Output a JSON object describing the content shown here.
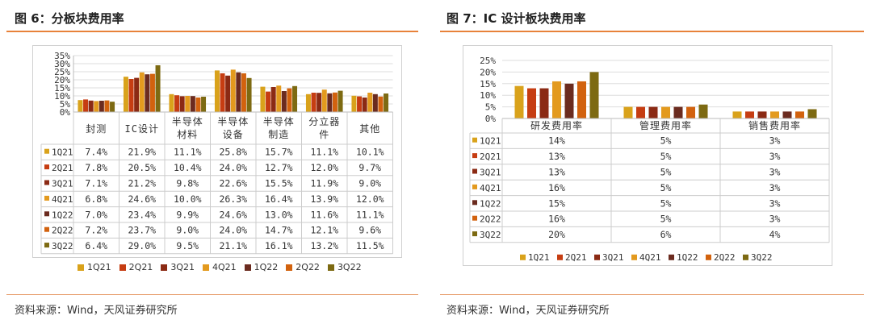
{
  "left": {
    "title": "图 6：分板块费用率",
    "source": "资料来源：Wind，天风证券研究所",
    "chart_data": {
      "type": "bar",
      "categories": [
        "封测",
        "IC设计",
        "半导体材料",
        "半导体设备",
        "半导体制造",
        "分立器件",
        "其他"
      ],
      "category_labels": [
        [
          "封测"
        ],
        [
          "IC设计"
        ],
        [
          "半导体",
          "材料"
        ],
        [
          "半导体",
          "设备"
        ],
        [
          "半导体",
          "制造"
        ],
        [
          "分立器",
          "件"
        ],
        [
          "其他"
        ]
      ],
      "ylim": [
        0,
        35
      ],
      "yticks": [
        "0%",
        "5%",
        "10%",
        "15%",
        "20%",
        "25%",
        "30%",
        "35%"
      ],
      "series": [
        {
          "name": "1Q21",
          "color": "#d9a21b",
          "values": [
            7.4,
            21.9,
            11.1,
            25.8,
            15.7,
            11.1,
            10.1
          ],
          "labels": [
            "7.4%",
            "21.9%",
            "11.1%",
            "25.8%",
            "15.7%",
            "11.1%",
            "10.1%"
          ]
        },
        {
          "name": "2Q21",
          "color": "#c63d12",
          "values": [
            7.8,
            20.5,
            10.4,
            24.0,
            12.7,
            12.0,
            9.7
          ],
          "labels": [
            "7.8%",
            "20.5%",
            "10.4%",
            "24.0%",
            "12.7%",
            "12.0%",
            "9.7%"
          ]
        },
        {
          "name": "3Q21",
          "color": "#8b2a14",
          "values": [
            7.1,
            21.2,
            9.8,
            22.6,
            15.5,
            11.9,
            9.0
          ],
          "labels": [
            "7.1%",
            "21.2%",
            "9.8%",
            "22.6%",
            "15.5%",
            "11.9%",
            "9.0%"
          ]
        },
        {
          "name": "4Q21",
          "color": "#e39a1e",
          "values": [
            6.8,
            24.6,
            10.0,
            26.3,
            16.4,
            13.9,
            12.0
          ],
          "labels": [
            "6.8%",
            "24.6%",
            "10.0%",
            "26.3%",
            "16.4%",
            "13.9%",
            "12.0%"
          ]
        },
        {
          "name": "1Q22",
          "color": "#6b2b1f",
          "values": [
            7.0,
            23.4,
            9.9,
            24.6,
            13.0,
            11.6,
            11.1
          ],
          "labels": [
            "7.0%",
            "23.4%",
            "9.9%",
            "24.6%",
            "13.0%",
            "11.6%",
            "11.1%"
          ]
        },
        {
          "name": "2Q22",
          "color": "#d2620e",
          "values": [
            7.2,
            23.7,
            9.0,
            24.0,
            14.7,
            12.1,
            9.6
          ],
          "labels": [
            "7.2%",
            "23.7%",
            "9.0%",
            "24.0%",
            "14.7%",
            "12.1%",
            "9.6%"
          ]
        },
        {
          "name": "3Q22",
          "color": "#7d6a12",
          "values": [
            6.4,
            29.0,
            9.5,
            21.1,
            16.1,
            13.2,
            11.5
          ],
          "labels": [
            "6.4%",
            "29.0%",
            "9.5%",
            "21.1%",
            "16.1%",
            "13.2%",
            "11.5%"
          ]
        }
      ]
    }
  },
  "right": {
    "title": "图 7：IC 设计板块费用率",
    "source": "资料来源：Wind，天风证券研究所",
    "chart_data": {
      "type": "bar",
      "categories": [
        "研发费用率",
        "管理费用率",
        "销售费用率"
      ],
      "ylim": [
        0,
        25
      ],
      "yticks": [
        "0%",
        "5%",
        "10%",
        "15%",
        "20%",
        "25%"
      ],
      "series": [
        {
          "name": "1Q21",
          "color": "#d9a21b",
          "values": [
            14,
            5,
            3
          ],
          "labels": [
            "14%",
            "5%",
            "3%"
          ]
        },
        {
          "name": "2Q21",
          "color": "#c63d12",
          "values": [
            13,
            5,
            3
          ],
          "labels": [
            "13%",
            "5%",
            "3%"
          ]
        },
        {
          "name": "3Q21",
          "color": "#8b2a14",
          "values": [
            13,
            5,
            3
          ],
          "labels": [
            "13%",
            "5%",
            "3%"
          ]
        },
        {
          "name": "4Q21",
          "color": "#e39a1e",
          "values": [
            16,
            5,
            3
          ],
          "labels": [
            "16%",
            "5%",
            "3%"
          ]
        },
        {
          "name": "1Q22",
          "color": "#6b2b1f",
          "values": [
            15,
            5,
            3
          ],
          "labels": [
            "15%",
            "5%",
            "3%"
          ]
        },
        {
          "name": "2Q22",
          "color": "#d2620e",
          "values": [
            16,
            5,
            3
          ],
          "labels": [
            "16%",
            "5%",
            "3%"
          ]
        },
        {
          "name": "3Q22",
          "color": "#7d6a12",
          "values": [
            20,
            6,
            4
          ],
          "labels": [
            "20%",
            "6%",
            "4%"
          ]
        }
      ]
    }
  }
}
